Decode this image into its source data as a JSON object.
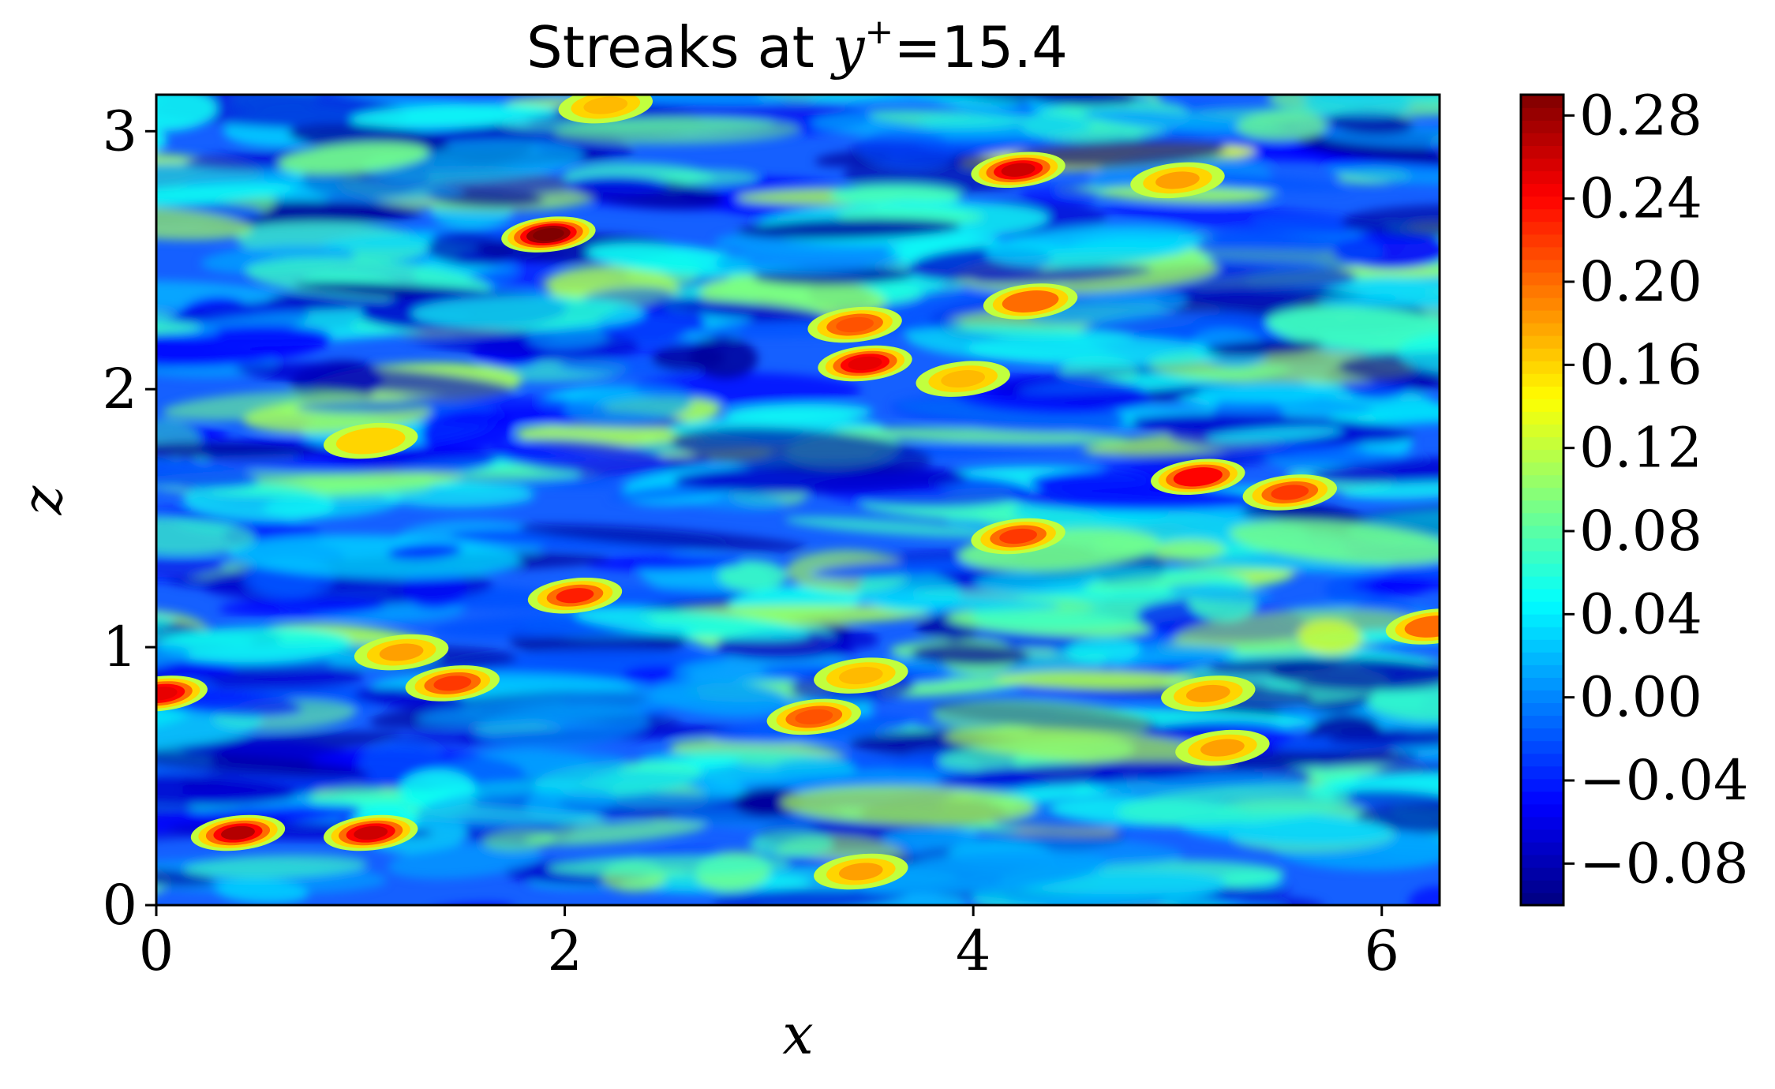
{
  "chart_data": {
    "type": "heatmap",
    "title": {
      "prefix": "Streaks at ",
      "variable": "y",
      "superscript": "+",
      "suffix": "=15.4"
    },
    "xlabel": "x",
    "ylabel": "z",
    "xlim": [
      0,
      6.283
    ],
    "ylim": [
      0,
      3.1416
    ],
    "xticks": [
      0,
      2,
      4,
      6
    ],
    "xtick_labels": [
      "0",
      "2",
      "4",
      "6"
    ],
    "yticks": [
      0,
      1,
      2,
      3
    ],
    "ytick_labels": [
      "0",
      "1",
      "2",
      "3"
    ],
    "colormap": "jet",
    "clim": [
      -0.1,
      0.29
    ],
    "colorbar_ticks": [
      0.28,
      0.24,
      0.2,
      0.16,
      0.12,
      0.08,
      0.04,
      0.0,
      -0.04,
      -0.08
    ],
    "colorbar_tick_labels": [
      "0.28",
      "0.24",
      "0.20",
      "0.16",
      "0.12",
      "0.08",
      "0.04",
      "0.00",
      "−0.04",
      "−0.08"
    ],
    "hotspots": [
      {
        "x": 1.92,
        "z": 2.6,
        "value": 0.29
      },
      {
        "x": 4.22,
        "z": 2.85,
        "value": 0.26
      },
      {
        "x": 3.47,
        "z": 2.1,
        "value": 0.25
      },
      {
        "x": 3.42,
        "z": 2.25,
        "value": 0.21
      },
      {
        "x": 4.28,
        "z": 2.34,
        "value": 0.2
      },
      {
        "x": 5.0,
        "z": 2.81,
        "value": 0.18
      },
      {
        "x": 5.55,
        "z": 1.6,
        "value": 0.22
      },
      {
        "x": 5.1,
        "z": 1.66,
        "value": 0.24
      },
      {
        "x": 4.22,
        "z": 1.43,
        "value": 0.22
      },
      {
        "x": 2.05,
        "z": 1.2,
        "value": 0.23
      },
      {
        "x": 0.4,
        "z": 0.28,
        "value": 0.27
      },
      {
        "x": 1.05,
        "z": 0.28,
        "value": 0.26
      },
      {
        "x": 0.02,
        "z": 0.82,
        "value": 0.25
      },
      {
        "x": 1.45,
        "z": 0.86,
        "value": 0.22
      },
      {
        "x": 3.22,
        "z": 0.73,
        "value": 0.21
      },
      {
        "x": 6.25,
        "z": 1.08,
        "value": 0.2
      },
      {
        "x": 1.2,
        "z": 0.98,
        "value": 0.18
      },
      {
        "x": 5.22,
        "z": 0.61,
        "value": 0.18
      },
      {
        "x": 3.45,
        "z": 0.13,
        "value": 0.18
      },
      {
        "x": 2.2,
        "z": 3.1,
        "value": 0.17
      },
      {
        "x": 1.05,
        "z": 1.8,
        "value": 0.16
      },
      {
        "x": 3.95,
        "z": 2.04,
        "value": 0.17
      },
      {
        "x": 5.15,
        "z": 0.82,
        "value": 0.18
      },
      {
        "x": 3.45,
        "z": 0.89,
        "value": 0.17
      }
    ]
  }
}
